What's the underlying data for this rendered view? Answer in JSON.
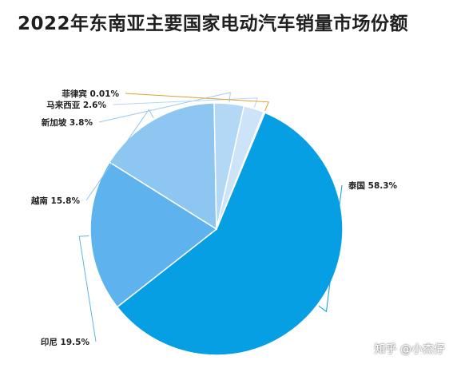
{
  "chart_data": {
    "type": "pie",
    "title": "2022年东南亚主要国家电动汽车销量市场份额",
    "categories": [
      "泰国",
      "印尼",
      "越南",
      "新加坡",
      "马来西亚",
      "菲律宾"
    ],
    "values": [
      58.3,
      19.5,
      15.8,
      3.8,
      2.6,
      0.01
    ],
    "labels": [
      "泰国 58.3%",
      "印尼 19.5%",
      "越南 15.8%",
      "新加坡 3.8%",
      "马来西亚 2.6%",
      "菲律宾 0.01%"
    ],
    "colors": [
      "#069fe3",
      "#5eb3ee",
      "#8ec6f2",
      "#b2d8f6",
      "#cde4f8",
      "#e8f2fb"
    ],
    "legend": "none"
  },
  "watermark": "知乎 @小杰仔"
}
